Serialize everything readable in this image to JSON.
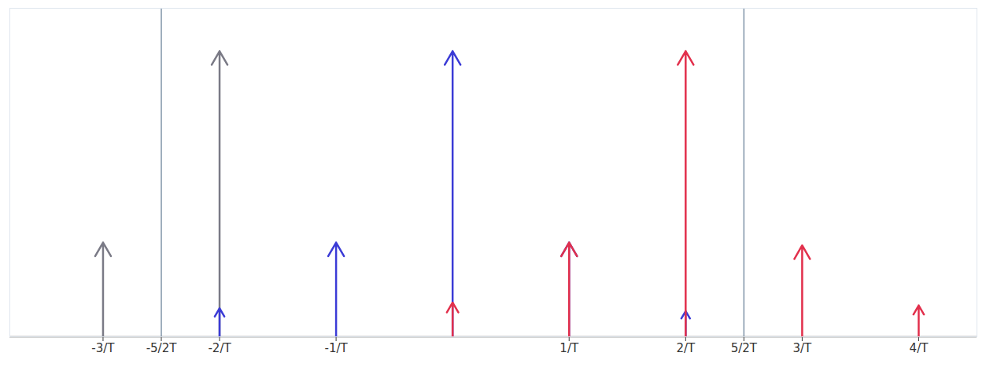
{
  "chart_data": {
    "type": "impulse",
    "xlim": [
      -3.8,
      4.5
    ],
    "ylim": [
      0,
      1.15
    ],
    "tick_labels": "x",
    "xticks": [
      {
        "value": -3,
        "label": "-3/T"
      },
      {
        "value": -2.5,
        "label": "-5/2T"
      },
      {
        "value": -2,
        "label": "-2/T"
      },
      {
        "value": -1,
        "label": "-1/T"
      },
      {
        "value": 1,
        "label": "1/T"
      },
      {
        "value": 2,
        "label": "2/T"
      },
      {
        "value": 2.5,
        "label": "5/2T"
      },
      {
        "value": 3,
        "label": "3/T"
      },
      {
        "value": 4,
        "label": "4/T"
      }
    ],
    "series": [
      {
        "color": "#7a7a86",
        "x": [
          -3,
          -2
        ],
        "values": [
          0.33,
          1.0
        ]
      },
      {
        "color": "#3b3bd6",
        "x": [
          -2,
          -1,
          0,
          1,
          2
        ],
        "values": [
          0.1,
          0.33,
          1.0,
          0.33,
          0.09
        ]
      },
      {
        "color": "#e2304c",
        "x": [
          0,
          1,
          2,
          3,
          4
        ],
        "values": [
          0.12,
          0.33,
          1.0,
          0.32,
          0.11
        ]
      }
    ],
    "vlines": [
      -2.5,
      2.5
    ]
  }
}
